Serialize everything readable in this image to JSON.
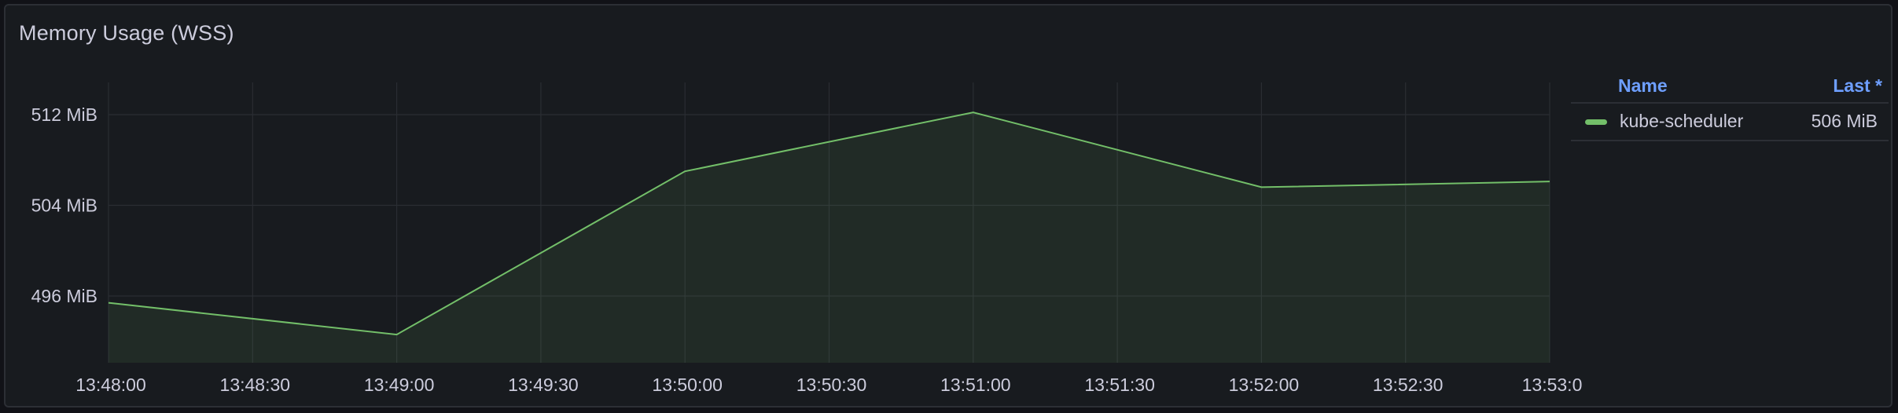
{
  "panel": {
    "title": "Memory Usage (WSS)"
  },
  "legend": {
    "header_name": "Name",
    "header_last": "Last *",
    "rows": [
      {
        "name": "kube-scheduler",
        "last": "506 MiB",
        "color": "#73bf69"
      }
    ]
  },
  "chart_data": {
    "type": "area",
    "title": "Memory Usage (WSS)",
    "xlabel": "",
    "ylabel": "",
    "x_ticks": [
      "13:48:00",
      "13:48:30",
      "13:49:00",
      "13:49:30",
      "13:50:00",
      "13:50:30",
      "13:51:00",
      "13:51:30",
      "13:52:00",
      "13:52:30",
      "13:53:0"
    ],
    "y_ticks": [
      "496 MiB",
      "504 MiB",
      "512 MiB"
    ],
    "y_tick_values": [
      496,
      504,
      512
    ],
    "ylim": [
      490,
      514
    ],
    "y_unit": "MiB",
    "x": [
      "13:48:00",
      "13:49:00",
      "13:50:00",
      "13:51:00",
      "13:52:00",
      "13:53:00"
    ],
    "series": [
      {
        "name": "kube-scheduler",
        "color": "#73bf69",
        "values": [
          495.4,
          492.6,
          507.0,
          512.2,
          505.6,
          506.1
        ]
      }
    ],
    "grid": true,
    "legend_position": "right"
  }
}
